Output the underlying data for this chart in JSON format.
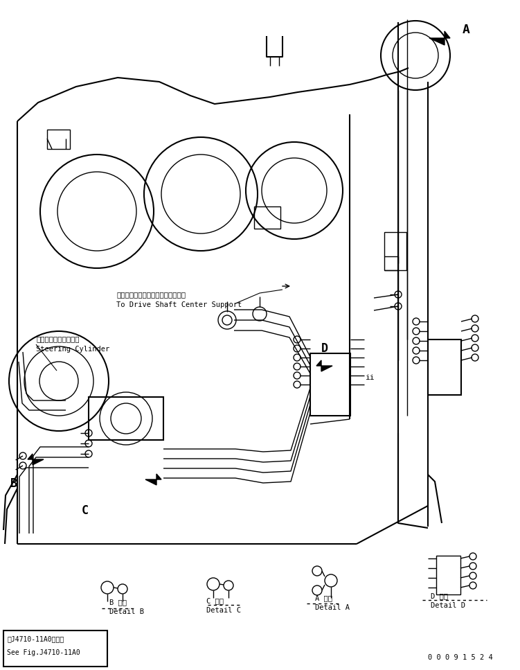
{
  "bg_color": "#ffffff",
  "line_color": "#000000",
  "fig_width": 7.51,
  "fig_height": 9.67,
  "dpi": 100,
  "bottom_box_text1": "第J4710-11A0図参照",
  "bottom_box_text2": "See Fig.J4710-11A0",
  "detail_b_jp": "B 詳細",
  "detail_b_en": "Detail B",
  "detail_c_jp": "C 詳細",
  "detail_c_en": "Detail C",
  "detail_a_jp": "A 詳細",
  "detail_a_en": "Detail A",
  "detail_d_jp": "D 詳細",
  "detail_d_en": "Detail D",
  "label_a": "A",
  "label_b": "B",
  "label_c": "C",
  "label_d": "D",
  "label_steering_jp": "ステアリングシリンダ",
  "label_steering_en": "Steering Cylinder",
  "label_drive_jp": "ドライブシャフトセンタサポートへ",
  "label_drive_en": "To Drive Shaft Center Support",
  "part_number": "0 0 0 9 1 5 2 4",
  "font_size_main": 7.5,
  "font_size_label": 9,
  "font_size_detail": 7.5
}
